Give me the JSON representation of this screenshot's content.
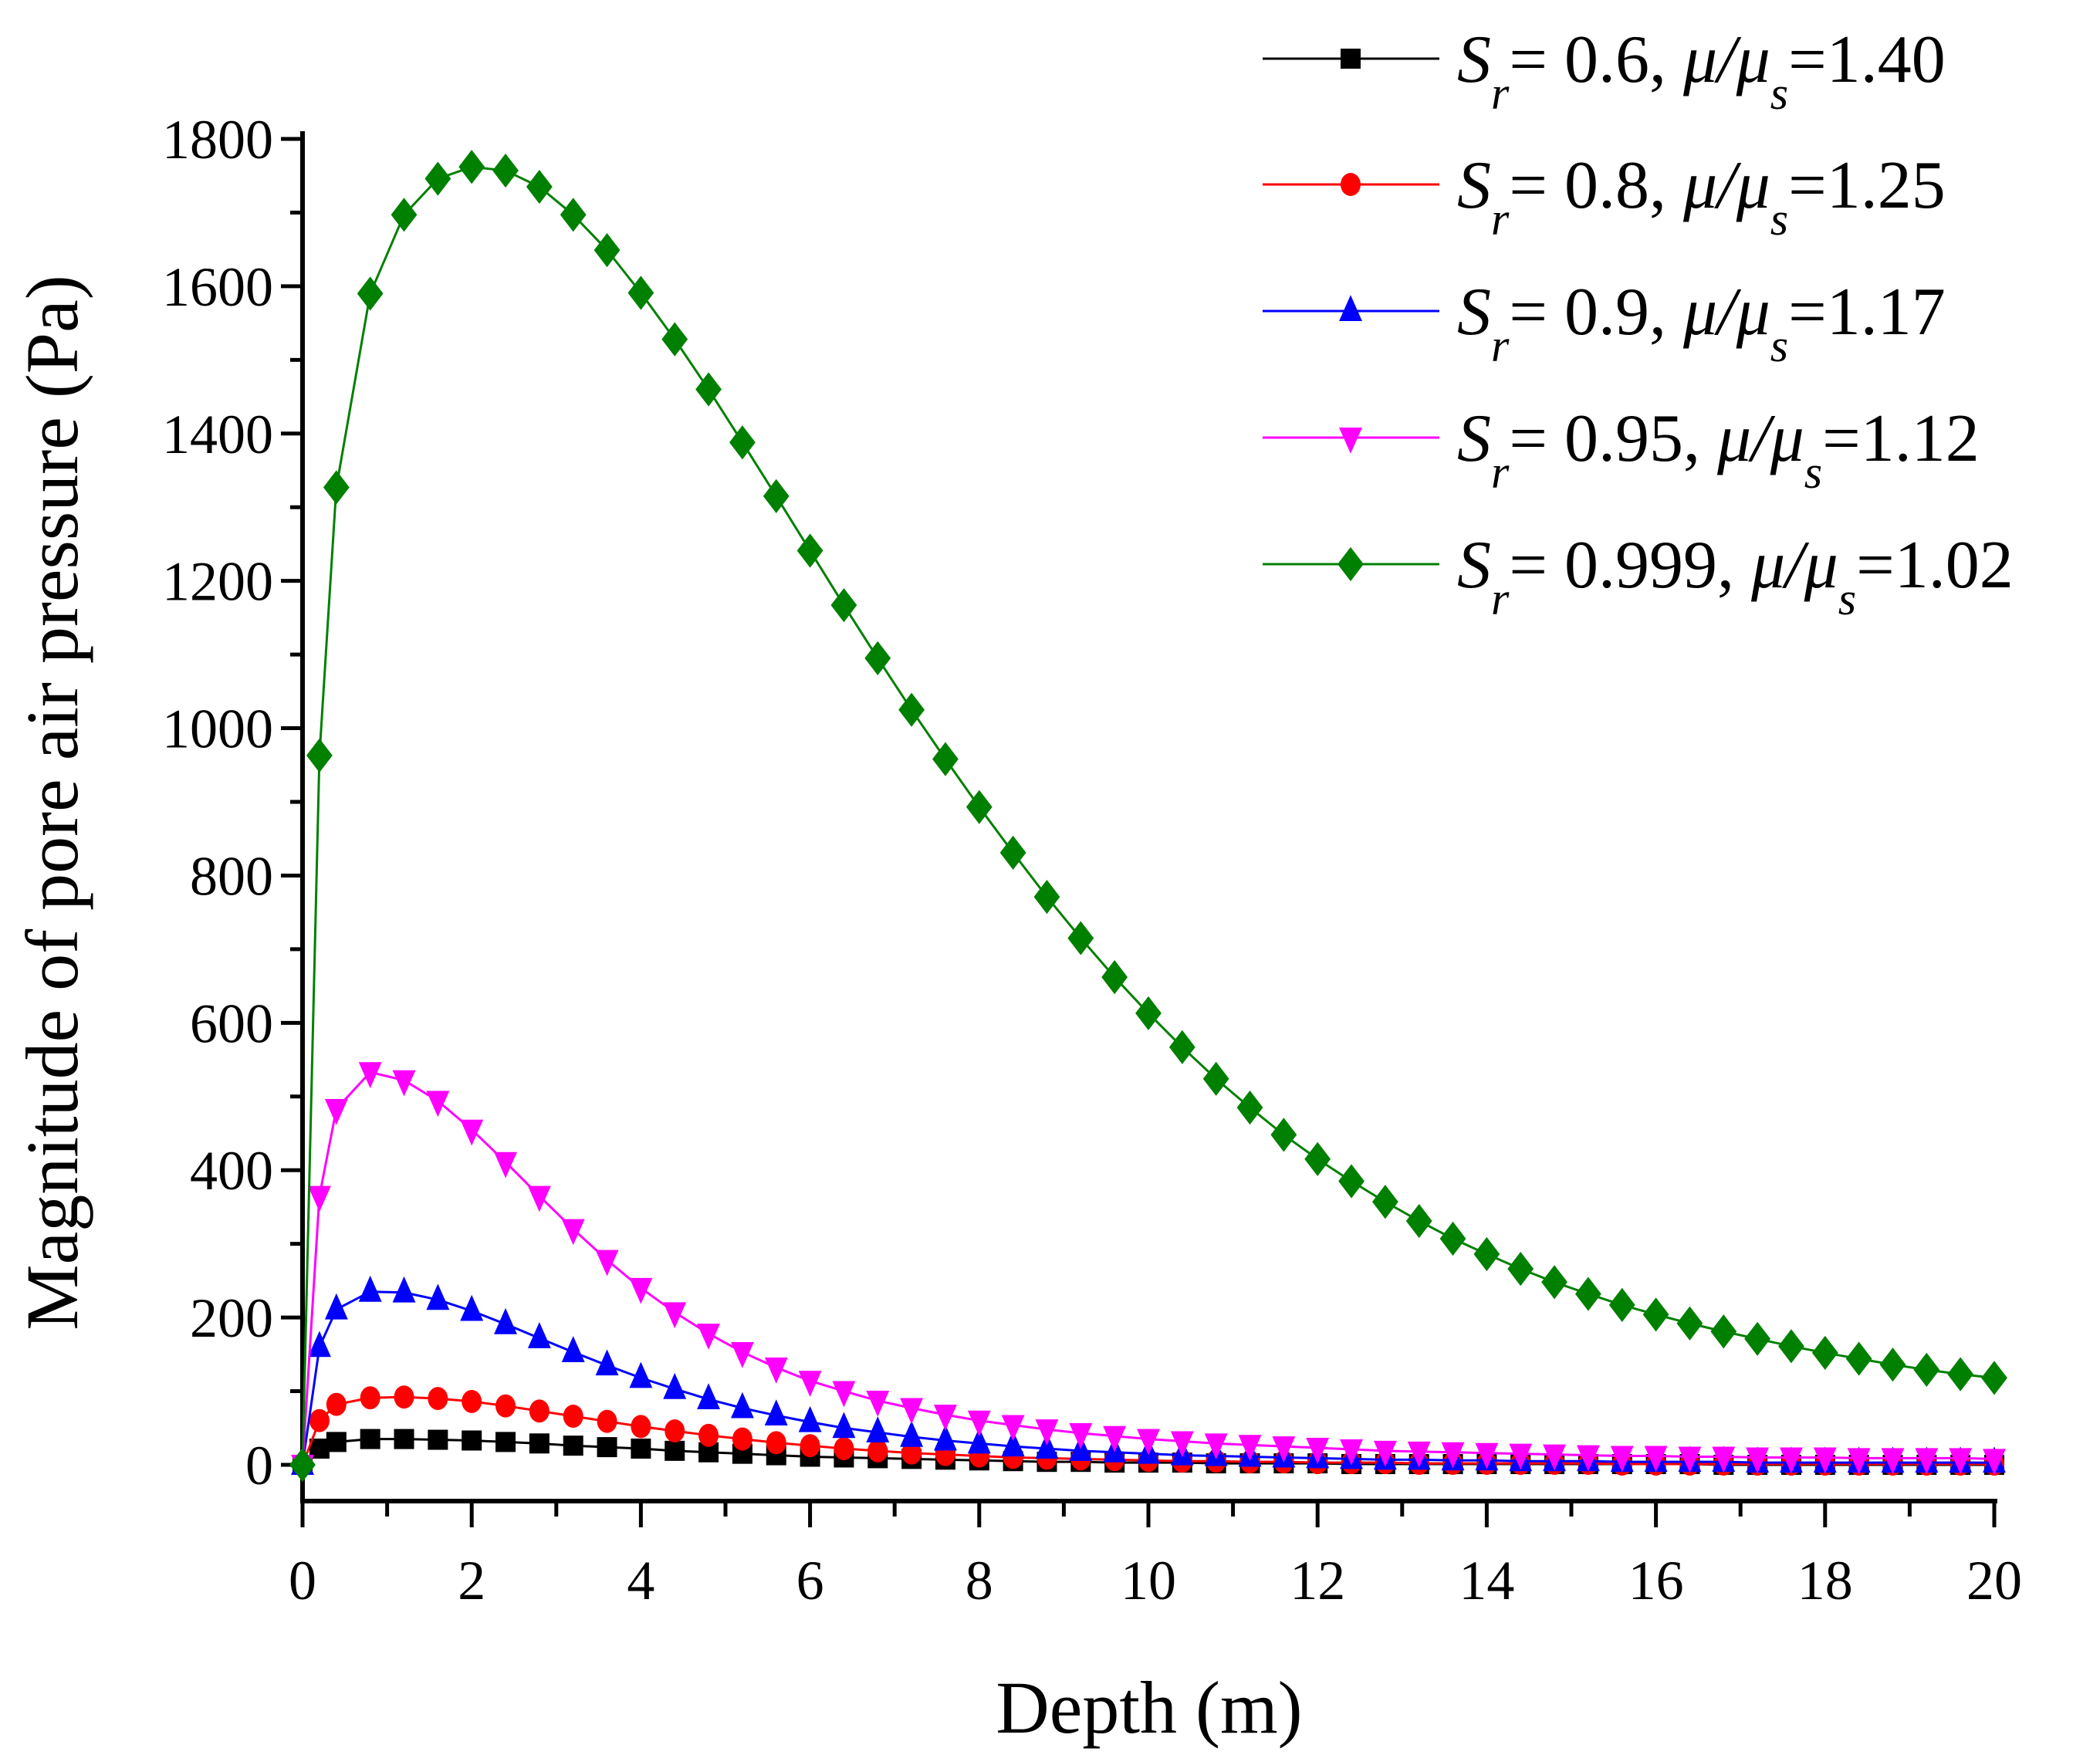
{
  "chart_data": {
    "type": "line",
    "title": "",
    "xlabel": "Depth (m)",
    "ylabel": "Magnitude of pore air pressure (Pa)",
    "xlim": [
      0,
      20
    ],
    "ylim": [
      0,
      1800
    ],
    "xticks": [
      0,
      2,
      4,
      6,
      8,
      10,
      12,
      14,
      16,
      18,
      20
    ],
    "yticks": [
      0,
      200,
      400,
      600,
      800,
      1000,
      1200,
      1400,
      1600,
      1800
    ],
    "grid": false,
    "legend_position": "top-right",
    "x": [
      0,
      0.2,
      0.4,
      0.8,
      1.2,
      1.6,
      2,
      2.4,
      2.8,
      3.2,
      3.6,
      4,
      4.4,
      4.8,
      5.2,
      5.6,
      6,
      6.4,
      6.8,
      7.2,
      7.6,
      8,
      8.4,
      8.8,
      9.2,
      9.6,
      10,
      10.4,
      10.8,
      11.2,
      11.6,
      12,
      12.4,
      12.8,
      13.2,
      13.6,
      14,
      14.4,
      14.8,
      15.2,
      15.6,
      16,
      16.4,
      16.8,
      17.2,
      17.6,
      18,
      18.4,
      18.8,
      19.2,
      19.6,
      20
    ],
    "series": [
      {
        "name": "Sr= 0.6, μ/μs=1.40",
        "sr": "0.6",
        "ratio": "1.40",
        "color": "#000000",
        "marker": "square",
        "values": [
          0,
          22,
          31,
          35,
          35,
          34,
          33,
          31,
          29,
          26,
          24,
          22,
          19,
          17,
          15,
          13,
          11,
          10,
          9,
          8,
          7,
          6,
          5,
          4,
          4,
          3,
          3,
          3,
          2,
          2,
          2,
          2,
          1,
          1,
          1,
          1,
          1,
          1,
          1,
          1,
          1,
          1,
          1,
          0,
          0,
          0,
          0,
          0,
          0,
          0,
          0,
          0
        ]
      },
      {
        "name": "Sr= 0.8, μ/μs=1.25",
        "sr": "0.8",
        "ratio": "1.25",
        "color": "#ff0000",
        "marker": "circle",
        "values": [
          0,
          60,
          82,
          91,
          92,
          90,
          86,
          80,
          73,
          66,
          59,
          52,
          46,
          40,
          35,
          30,
          26,
          22,
          19,
          16,
          14,
          12,
          10,
          9,
          8,
          7,
          6,
          5,
          5,
          4,
          4,
          3,
          3,
          3,
          2,
          2,
          2,
          2,
          2,
          2,
          1,
          1,
          1,
          1,
          1,
          1,
          1,
          1,
          1,
          1,
          1,
          1
        ]
      },
      {
        "name": "Sr= 0.9, μ/μs=1.17",
        "sr": "0.9",
        "ratio": "1.17",
        "color": "#0000ff",
        "marker": "triangle-up",
        "values": [
          0,
          160,
          211,
          235,
          234,
          224,
          209,
          191,
          172,
          153,
          135,
          118,
          103,
          89,
          77,
          67,
          58,
          50,
          44,
          38,
          33,
          29,
          25,
          22,
          19,
          17,
          15,
          13,
          12,
          11,
          10,
          9,
          8,
          7,
          7,
          6,
          6,
          5,
          5,
          5,
          4,
          4,
          4,
          4,
          3,
          3,
          3,
          3,
          3,
          3,
          3,
          3
        ]
      },
      {
        "name": "Sr= 0.95, μ/μs=1.12",
        "sr": "0.95",
        "ratio": "1.12",
        "color": "#ff00ff",
        "marker": "triangle-down",
        "values": [
          0,
          365,
          483,
          533,
          522,
          494,
          455,
          411,
          365,
          320,
          278,
          240,
          207,
          178,
          153,
          132,
          114,
          100,
          87,
          77,
          68,
          60,
          54,
          48,
          43,
          39,
          35,
          32,
          29,
          27,
          25,
          23,
          21,
          19,
          18,
          17,
          16,
          15,
          14,
          13,
          12,
          12,
          11,
          11,
          10,
          10,
          10,
          9,
          9,
          9,
          9,
          8
        ]
      },
      {
        "name": "Sr= 0.999, μ/μs=1.02",
        "sr": "0.999",
        "ratio": "1.02",
        "color": "#008000",
        "marker": "diamond",
        "values": [
          0,
          963,
          1327,
          1590,
          1697,
          1746,
          1762,
          1757,
          1735,
          1697,
          1649,
          1591,
          1528,
          1460,
          1388,
          1315,
          1241,
          1167,
          1095,
          1025,
          958,
          893,
          831,
          771,
          715,
          662,
          613,
          567,
          524,
          485,
          448,
          415,
          385,
          357,
          331,
          307,
          286,
          266,
          248,
          232,
          217,
          204,
          192,
          181,
          171,
          161,
          152,
          144,
          136,
          129,
          123,
          118
        ]
      }
    ]
  }
}
